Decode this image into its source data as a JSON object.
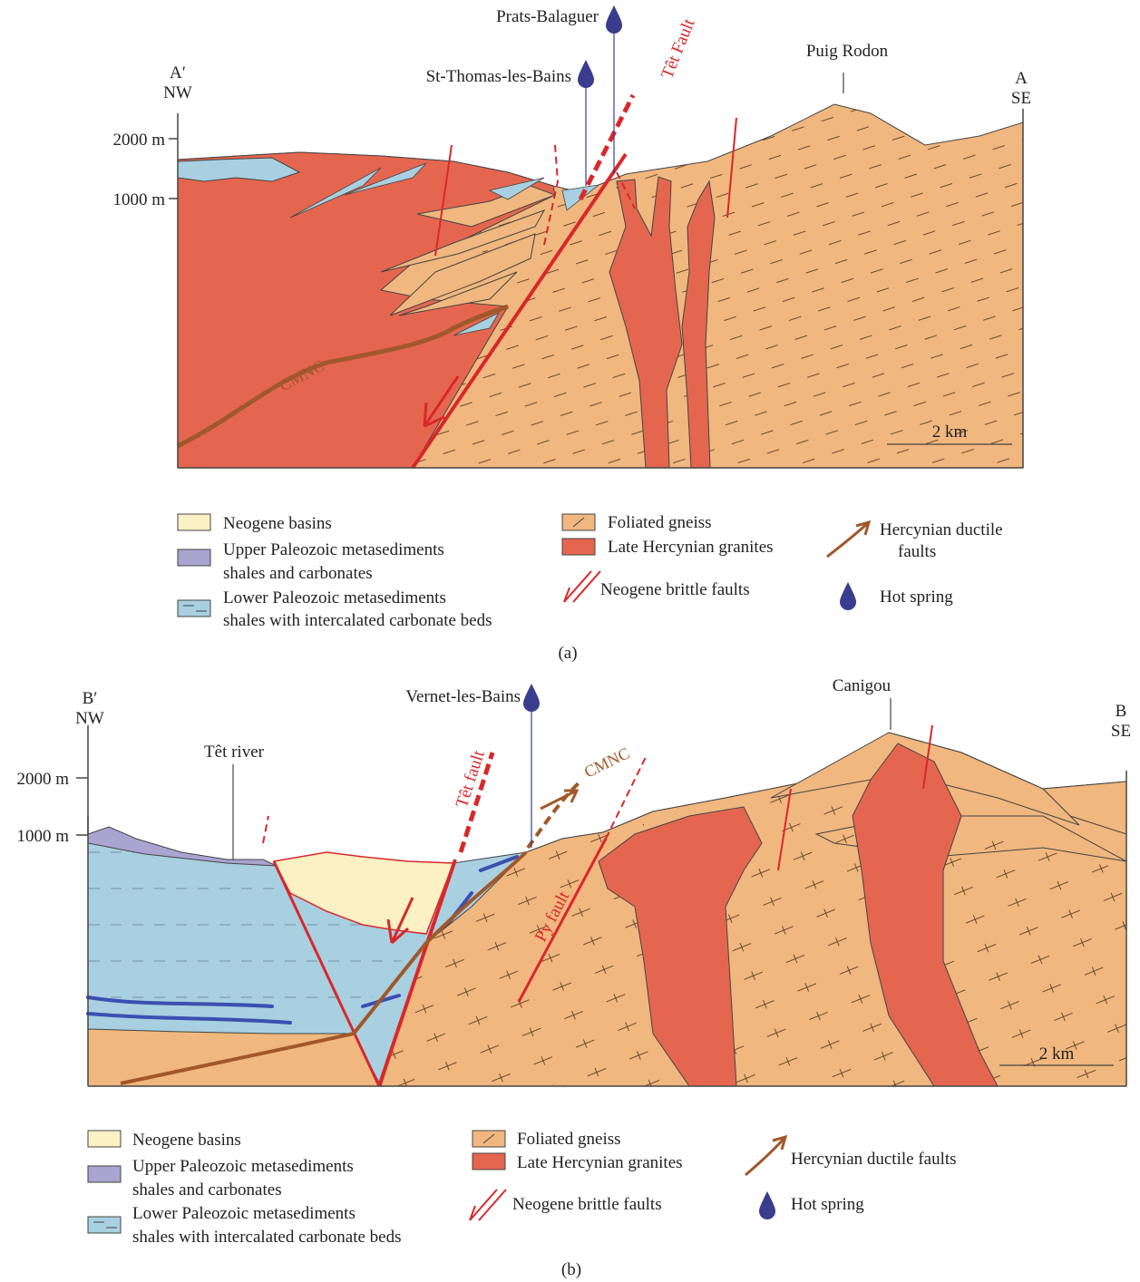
{
  "colors": {
    "neogene": "#fbf1c4",
    "upper_paleozoic": "#a9a4d0",
    "lower_paleozoic": "#a8d0e0",
    "gneiss": "#f0b77e",
    "granite": "#e5664f",
    "brittle_fault": "#d8282b",
    "ductile_fault": "#a0582a",
    "hot_spring": "#3a3d8e"
  },
  "panel_a": {
    "caption": "(a)",
    "left_end": "A′",
    "left_dir": "NW",
    "right_end": "A",
    "right_dir": "SE",
    "elev_2000": "2000 m",
    "elev_1000": "1000 m",
    "springs": [
      "Prats-Balaguer",
      "St-Thomas-les-Bains"
    ],
    "peak": "Puig Rodon",
    "fault_label": "Têt Fault",
    "contact_label": "CMNC",
    "scale": "2 km",
    "legend": {
      "neogene": "Neogene basins",
      "upper_1": "Upper Paleozoic metasediments",
      "upper_2": "shales and carbonates",
      "lower_1": "Lower Paleozoic metasediments",
      "lower_2": "shales with intercalated carbonate beds",
      "gneiss": "Foliated gneiss",
      "granite": "Late Hercynian granites",
      "brittle": "Neogene brittle faults",
      "ductile_1": "Hercynian ductile",
      "ductile_2": "faults",
      "spring": "Hot spring"
    }
  },
  "panel_b": {
    "caption": "(b)",
    "left_end": "B′",
    "left_dir": "NW",
    "right_end": "B",
    "right_dir": "SE",
    "elev_2000": "2000 m",
    "elev_1000": "1000 m",
    "spring": "Vernet-les-Bains",
    "peak": "Canigou",
    "river": "Têt river",
    "fault_label": "Têt fault",
    "py_fault": "Py fault",
    "contact_label": "CMNC",
    "scale": "2 km",
    "legend": {
      "neogene": "Neogene basins",
      "upper_1": "Upper Paleozoic metasediments",
      "upper_2": "shales and carbonates",
      "lower_1": "Lower Paleozoic metasediments",
      "lower_2": "shales with intercalated carbonate beds",
      "gneiss": "Foliated gneiss",
      "granite": "Late Hercynian granites",
      "brittle": "Neogene brittle faults",
      "ductile": "Hercynian ductile faults",
      "spring": "Hot spring"
    }
  }
}
